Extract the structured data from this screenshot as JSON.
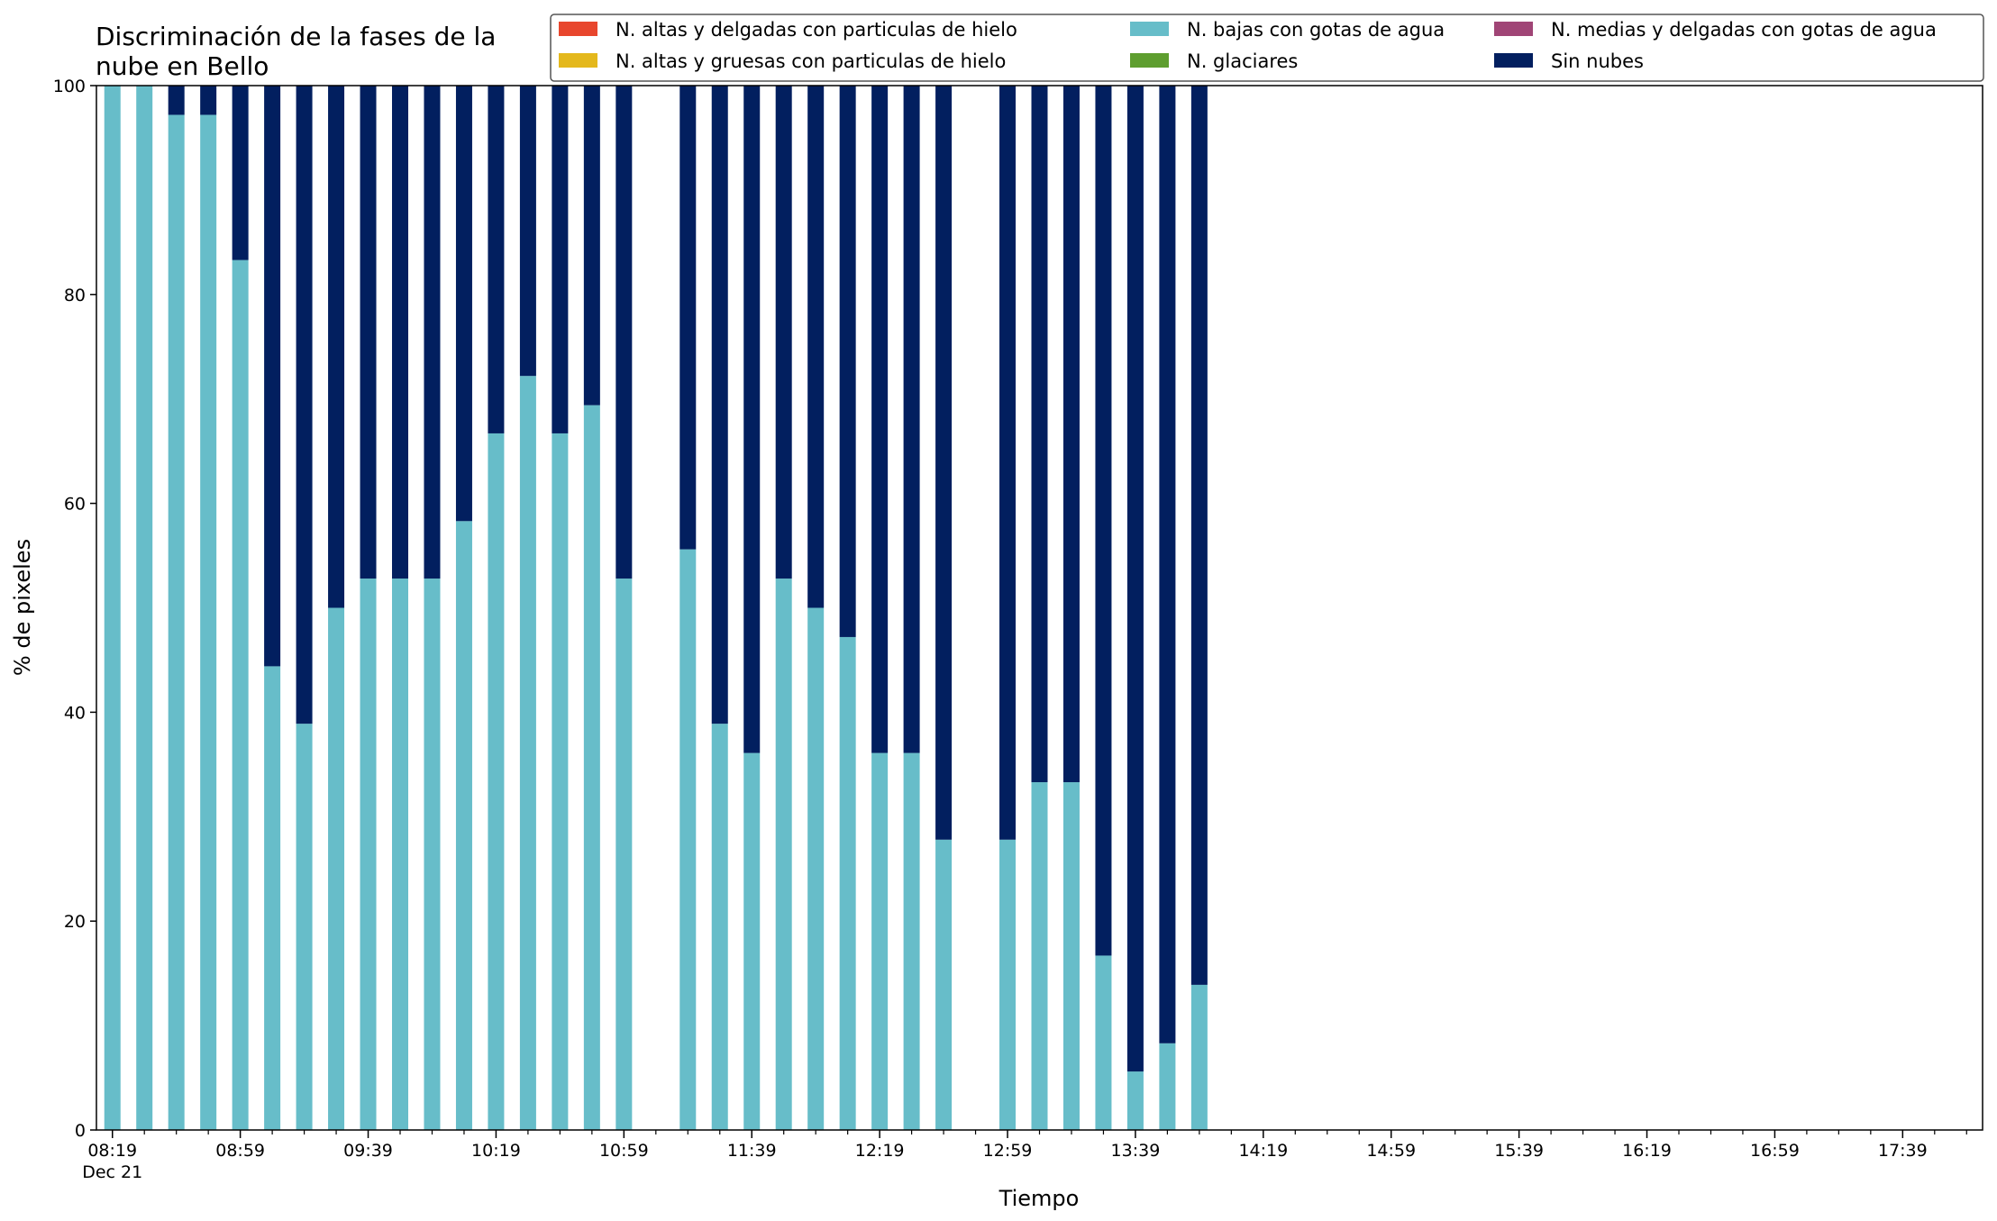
{
  "chart_data": {
    "type": "bar",
    "stacked": true,
    "title_lines": [
      "Discriminación de la fases de la",
      "nube en Bello"
    ],
    "xlabel": "Tiempo",
    "ylabel": "% de pixeles",
    "ylim": [
      0,
      100
    ],
    "yticks": [
      0,
      20,
      40,
      60,
      80,
      100
    ],
    "xlim": [
      "08:14",
      "18:04"
    ],
    "x_major_ticks": [
      "08:19",
      "08:59",
      "09:39",
      "10:19",
      "10:59",
      "11:39",
      "12:19",
      "12:59",
      "13:39",
      "14:19",
      "14:59",
      "15:39",
      "16:19",
      "16:59",
      "17:39"
    ],
    "x_minor_ticks": [
      "08:29",
      "08:39",
      "08:49",
      "09:09",
      "09:19",
      "09:29",
      "09:49",
      "09:59",
      "10:09",
      "10:29",
      "10:39",
      "10:49",
      "11:09",
      "11:19",
      "11:29",
      "11:49",
      "11:59",
      "12:09",
      "12:29",
      "12:39",
      "12:49",
      "13:09",
      "13:19",
      "13:29",
      "13:49",
      "13:59",
      "14:09",
      "14:29",
      "14:39",
      "14:49",
      "15:09",
      "15:19",
      "15:29",
      "15:49",
      "15:59",
      "16:09",
      "16:29",
      "16:39",
      "16:49",
      "17:09",
      "17:19",
      "17:29",
      "17:49",
      "17:59"
    ],
    "x_date_label": "Dec 21",
    "grid": false,
    "legend_position": "top-right",
    "x": [
      "08:19",
      "08:29",
      "08:39",
      "08:49",
      "08:59",
      "09:09",
      "09:19",
      "09:29",
      "09:39",
      "09:49",
      "09:59",
      "10:09",
      "10:19",
      "10:29",
      "10:39",
      "10:49",
      "10:59",
      "11:19",
      "11:29",
      "11:39",
      "11:49",
      "11:59",
      "12:09",
      "12:19",
      "12:29",
      "12:39",
      "12:59",
      "13:09",
      "13:19",
      "13:29",
      "13:39",
      "13:49",
      "13:59"
    ],
    "series": [
      {
        "name": "N. altas y delgadas con particulas de hielo",
        "color": "#e8462d",
        "values": [
          0,
          0,
          0,
          0,
          0,
          0,
          0,
          0,
          0,
          0,
          0,
          0,
          0,
          0,
          0,
          0,
          0,
          0,
          0,
          0,
          0,
          0,
          0,
          0,
          0,
          0,
          0,
          0,
          0,
          0,
          0,
          0,
          0
        ]
      },
      {
        "name": "N. altas y gruesas con particulas de hielo",
        "color": "#e4b81c",
        "values": [
          0,
          0,
          0,
          0,
          0,
          0,
          0,
          0,
          0,
          0,
          0,
          0,
          0,
          0,
          0,
          0,
          0,
          0,
          0,
          0,
          0,
          0,
          0,
          0,
          0,
          0,
          0,
          0,
          0,
          0,
          0,
          0,
          0
        ]
      },
      {
        "name": "N. bajas con gotas de agua",
        "color": "#67bdc9",
        "values": [
          100,
          100,
          97.2,
          97.2,
          83.3,
          44.4,
          38.9,
          50,
          52.8,
          52.8,
          52.8,
          58.3,
          66.7,
          72.2,
          66.7,
          69.4,
          52.8,
          55.6,
          38.9,
          36.1,
          52.8,
          50,
          47.2,
          36.1,
          36.1,
          27.8,
          27.8,
          33.3,
          33.3,
          16.7,
          5.6,
          8.3,
          13.9
        ]
      },
      {
        "name": "N. glaciares",
        "color": "#5e9e2f",
        "values": [
          0,
          0,
          0,
          0,
          0,
          0,
          0,
          0,
          0,
          0,
          0,
          0,
          0,
          0,
          0,
          0,
          0,
          0,
          0,
          0,
          0,
          0,
          0,
          0,
          0,
          0,
          0,
          0,
          0,
          0,
          0,
          0,
          0
        ]
      },
      {
        "name": "N. medias y delgadas con gotas de agua",
        "color": "#a04576",
        "values": [
          0,
          0,
          0,
          0,
          0,
          0,
          0,
          0,
          0,
          0,
          0,
          0,
          0,
          0,
          0,
          0,
          0,
          0,
          0,
          0,
          0,
          0,
          0,
          0,
          0,
          0,
          0,
          0,
          0,
          0,
          0,
          0,
          0
        ]
      },
      {
        "name": "Sin nubes",
        "color": "#021f5f",
        "values": [
          0,
          0,
          2.8,
          2.8,
          16.7,
          55.6,
          61.1,
          50,
          47.2,
          47.2,
          47.2,
          41.7,
          33.3,
          27.8,
          33.3,
          30.6,
          47.2,
          44.4,
          61.1,
          63.9,
          47.2,
          50,
          52.8,
          63.9,
          63.9,
          72.2,
          72.2,
          66.7,
          66.7,
          83.3,
          94.4,
          91.7,
          86.1
        ]
      }
    ]
  }
}
